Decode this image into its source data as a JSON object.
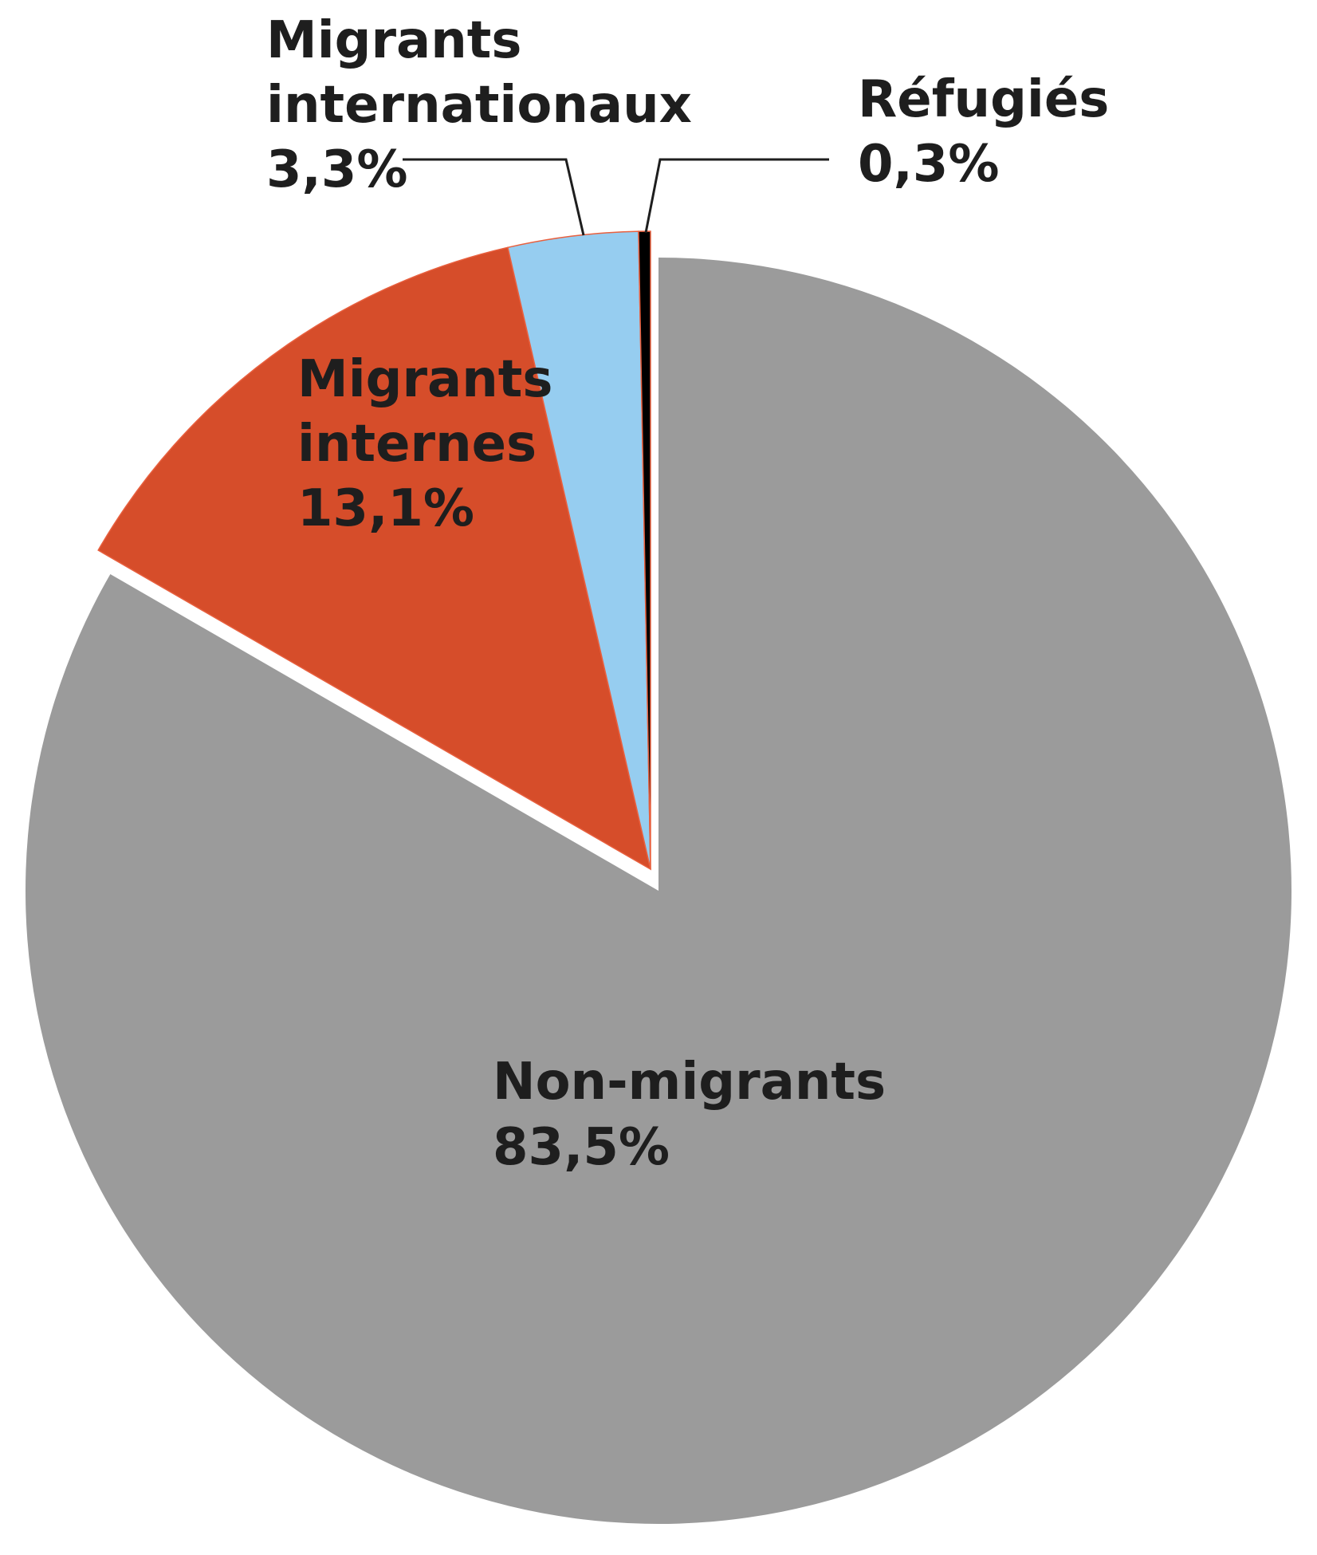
{
  "chart_data": {
    "type": "pie",
    "title": "",
    "start_angle_deg": 0,
    "direction": "clockwise",
    "slices": [
      {
        "name": "Non-migrants",
        "value": 83.5,
        "value_label": "83,5%",
        "color": "#9b9b9b",
        "exploded": false
      },
      {
        "name": "Migrants internes",
        "value": 13.1,
        "value_label": "13,1%",
        "color": "#d64d2a",
        "exploded": true
      },
      {
        "name": "Migrants internationaux",
        "value": 3.3,
        "value_label": "3,3%",
        "color": "#96cdf0",
        "exploded": true
      },
      {
        "name": "Réfugiés",
        "value": 0.3,
        "value_label": "0,3%",
        "color": "#000000",
        "exploded": true
      }
    ],
    "labels": {
      "non_migrants": {
        "lines": [
          "Non-migrants",
          "83,5%"
        ]
      },
      "migrants_internes": {
        "lines": [
          "Migrants",
          "internes",
          "13,1%"
        ]
      },
      "migrants_internationaux": {
        "lines": [
          "Migrants",
          "internationaux",
          "3,3%"
        ]
      },
      "refugies": {
        "lines": [
          "Réfugiés",
          "0,3%"
        ]
      }
    },
    "legend": "none",
    "label_color": "#1e1e1e",
    "leader_line_color": "#1e1e1e"
  }
}
